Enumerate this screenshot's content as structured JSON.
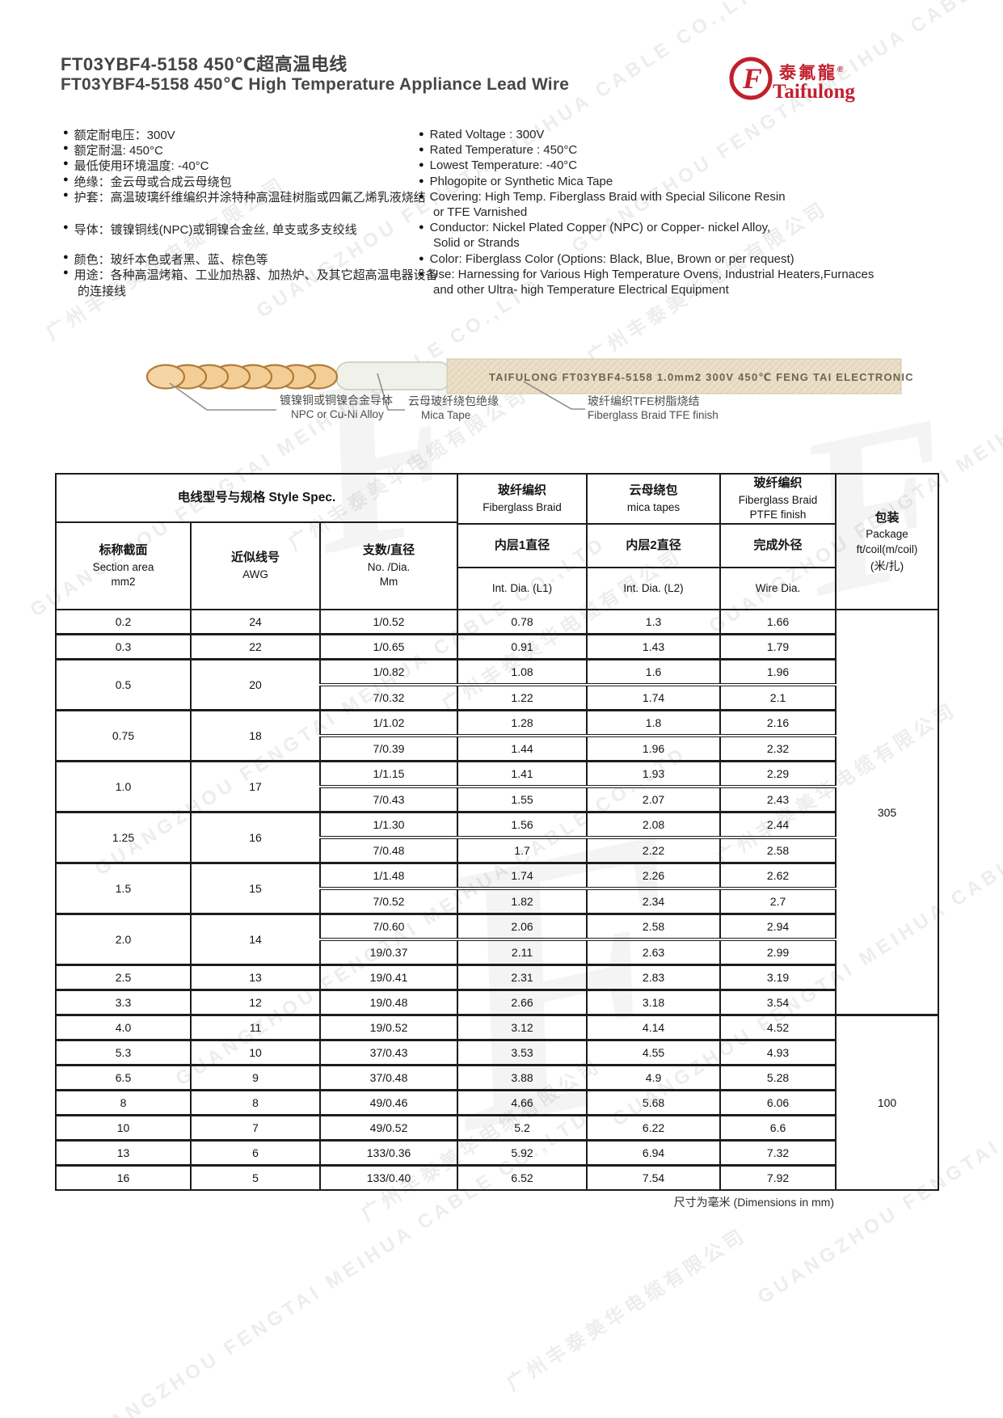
{
  "page": {
    "title_cn": "FT03YBF4-5158  450℃超高温电线",
    "title_en": "FT03YBF4-5158  450℃ High Temperature Appliance Lead Wire",
    "footer_note": "尺寸为毫米 (Dimensions in mm)"
  },
  "logo": {
    "brand_cn": "泰氟龍",
    "reg": "®",
    "brand_en": "Taifulong",
    "mark": "F",
    "color": "#c2202d"
  },
  "watermark": {
    "line_cn": "广州丰泰美华电缆有限公司",
    "line_en": "GUANGZHOU FENGTAI MEIHUA CABLE CO.,LTD",
    "mark": "F"
  },
  "specs_cn": [
    {
      "text": "额定耐电压：300V"
    },
    {
      "text": "额定耐温: 450°C"
    },
    {
      "text": "最低使用环境温度: -40°C"
    },
    {
      "text": "绝缘：金云母或合成云母绕包"
    },
    {
      "text": "护套：高温玻璃纤维编织并涂特种高温硅树脂或四氟乙烯乳液烧结"
    },
    {
      "text": "导体：镀镍铜线(NPC)或铜镍合金丝, 单支或多支绞线"
    },
    {
      "text": "颜色：玻纤本色或者黑、蓝、棕色等"
    },
    {
      "text": "用途：各种高温烤箱、工业加热器、加热炉、及其它超高温电器设备"
    },
    {
      "text": "的连接线",
      "cont": true
    }
  ],
  "specs_en": [
    {
      "text": "Rated Voltage : 300V"
    },
    {
      "text": "Rated Temperature : 450°C"
    },
    {
      "text": "Lowest Temperature:  -40°C"
    },
    {
      "text": "Phlogopite or Synthetic Mica Tape"
    },
    {
      "text": "Covering: High Temp. Fiberglass Braid with Special Silicone Resin"
    },
    {
      "text": "or TFE Varnished",
      "cont": true
    },
    {
      "text": "Conductor: Nickel Plated Copper (NPC) or Copper- nickel Alloy,"
    },
    {
      "text": "Solid  or  Strands",
      "cont": true
    },
    {
      "text": "Color: Fiberglass Color (Options: Black, Blue, Brown or per request)"
    },
    {
      "text": "Use: Harnessing for Various High Temperature Ovens, Industrial Heaters,Furnaces"
    },
    {
      "text": "and other Ultra- high Temperature Electrical  Equipment",
      "cont": true
    }
  ],
  "wire": {
    "print": "TAIFULONG   FT03YBF4-5158    1.0mm2    300V    450℃    FENG TAI    ELECTRONIC",
    "labels": [
      {
        "cn": "镀镍铜或铜镍合金导体",
        "en": "NPC or Cu-Ni Alloy"
      },
      {
        "cn": "云母玻纤绕包绝缘",
        "en": "Mica Tape"
      },
      {
        "cn": "玻纤编织TFE树脂烧结",
        "en": "Fiberglass Braid TFE finish"
      }
    ]
  },
  "table": {
    "header": {
      "style_spec": "电线型号与规格 Style Spec.",
      "area_cn": "标称截面",
      "area_en": "Section area",
      "area_unit": "mm2",
      "awg_cn": "近似线号",
      "awg_en": "AWG",
      "dia_cn": "支数/直径",
      "dia_en": "No. /Dia.",
      "dia_unit": "Mm",
      "fg_cn": "玻纤编织",
      "fg_en": "Fiberglass Braid",
      "mica_cn": "云母绕包",
      "mica_en": "mica tapes",
      "ptfe_cn": "玻纤编织",
      "ptfe_en": "Fiberglass Braid PTFE finish",
      "l1_cn": "内层1直径",
      "l1_en": "Int. Dia. (L1)",
      "l2_cn": "内层2直径",
      "l2_en": "Int. Dia. (L2)",
      "od_cn": "完成外径",
      "od_en": "Wire Dia.",
      "pkg_cn": "包装",
      "pkg_en": "Package",
      "pkg_unit1": "ft/coil(m/coil)",
      "pkg_unit2": "(米/扎)"
    },
    "groups": [
      {
        "area": "0.2",
        "awg": "24",
        "rows": [
          [
            "1/0.52",
            "0.78",
            "1.3",
            "1.66"
          ]
        ]
      },
      {
        "area": "0.3",
        "awg": "22",
        "rows": [
          [
            "1/0.65",
            "0.91",
            "1.43",
            "1.79"
          ]
        ]
      },
      {
        "area": "0.5",
        "awg": "20",
        "rows": [
          [
            "1/0.82",
            "1.08",
            "1.6",
            "1.96"
          ],
          [
            "7/0.32",
            "1.22",
            "1.74",
            "2.1"
          ]
        ]
      },
      {
        "area": "0.75",
        "awg": "18",
        "rows": [
          [
            "1/1.02",
            "1.28",
            "1.8",
            "2.16"
          ],
          [
            "7/0.39",
            "1.44",
            "1.96",
            "2.32"
          ]
        ]
      },
      {
        "area": "1.0",
        "awg": "17",
        "rows": [
          [
            "1/1.15",
            "1.41",
            "1.93",
            "2.29"
          ],
          [
            "7/0.43",
            "1.55",
            "2.07",
            "2.43"
          ]
        ]
      },
      {
        "area": "1.25",
        "awg": "16",
        "rows": [
          [
            "1/1.30",
            "1.56",
            "2.08",
            "2.44"
          ],
          [
            "7/0.48",
            "1.7",
            "2.22",
            "2.58"
          ]
        ]
      },
      {
        "area": "1.5",
        "awg": "15",
        "rows": [
          [
            "1/1.48",
            "1.74",
            "2.26",
            "2.62"
          ],
          [
            "7/0.52",
            "1.82",
            "2.34",
            "2.7"
          ]
        ]
      },
      {
        "area": "2.0",
        "awg": "14",
        "rows": [
          [
            "7/0.60",
            "2.06",
            "2.58",
            "2.94"
          ],
          [
            "19/0.37",
            "2.11",
            "2.63",
            "2.99"
          ]
        ]
      },
      {
        "area": "2.5",
        "awg": "13",
        "rows": [
          [
            "19/0.41",
            "2.31",
            "2.83",
            "3.19"
          ]
        ]
      },
      {
        "area": "3.3",
        "awg": "12",
        "rows": [
          [
            "19/0.48",
            "2.66",
            "3.18",
            "3.54"
          ]
        ]
      },
      {
        "area": "4.0",
        "awg": "11",
        "rows": [
          [
            "19/0.52",
            "3.12",
            "4.14",
            "4.52"
          ]
        ]
      },
      {
        "area": "5.3",
        "awg": "10",
        "rows": [
          [
            "37/0.43",
            "3.53",
            "4.55",
            "4.93"
          ]
        ]
      },
      {
        "area": "6.5",
        "awg": "9",
        "rows": [
          [
            "37/0.48",
            "3.88",
            "4.9",
            "5.28"
          ]
        ]
      },
      {
        "area": "8",
        "awg": "8",
        "rows": [
          [
            "49/0.46",
            "4.66",
            "5.68",
            "6.06"
          ]
        ]
      },
      {
        "area": "10",
        "awg": "7",
        "rows": [
          [
            "49/0.52",
            "5.2",
            "6.22",
            "6.6"
          ]
        ]
      },
      {
        "area": "13",
        "awg": "6",
        "rows": [
          [
            "133/0.36",
            "5.92",
            "6.94",
            "7.32"
          ]
        ]
      },
      {
        "area": "16",
        "awg": "5",
        "rows": [
          [
            "133/0.40",
            "6.52",
            "7.54",
            "7.92"
          ]
        ]
      }
    ],
    "packages": [
      {
        "value": "305",
        "rows": 16
      },
      {
        "value": "100",
        "rows": 7
      }
    ]
  }
}
